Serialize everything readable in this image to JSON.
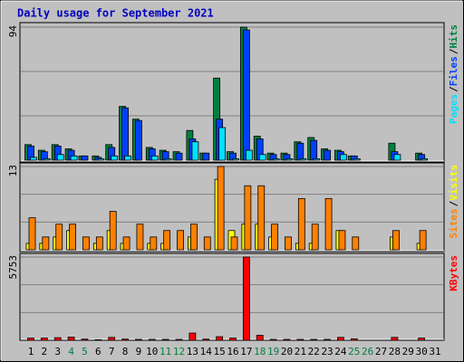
{
  "chart_data": {
    "type": "bar",
    "title": "Daily usage for September 2021",
    "background": "#c0c0c0",
    "legend_separator": "/",
    "categories": [
      "1",
      "2",
      "3",
      "4",
      "5",
      "6",
      "7",
      "8",
      "9",
      "10",
      "11",
      "12",
      "13",
      "14",
      "15",
      "16",
      "17",
      "18",
      "19",
      "20",
      "21",
      "22",
      "23",
      "24",
      "25",
      "26",
      "27",
      "28",
      "29",
      "30",
      "31"
    ],
    "category_colors": [
      "#000000",
      "#000000",
      "#000000",
      "#008040",
      "#008040",
      "#000000",
      "#000000",
      "#000000",
      "#000000",
      "#000000",
      "#008040",
      "#008040",
      "#000000",
      "#000000",
      "#000000",
      "#000000",
      "#000000",
      "#008040",
      "#008040",
      "#000000",
      "#000000",
      "#000000",
      "#000000",
      "#000000",
      "#008040",
      "#008040",
      "#000000",
      "#000000",
      "#000000",
      "#000000",
      "#000000"
    ],
    "panels": [
      {
        "ylim": [
          0,
          94
        ],
        "yticks": [
          94
        ],
        "grid_divisions": 3,
        "series": [
          {
            "name": "Hits",
            "color": "#008040",
            "values": [
              11,
              7,
              11,
              8,
              3,
              3,
              11,
              38,
              29,
              9,
              7,
              6,
              21,
              5,
              58,
              6,
              94,
              17,
              5,
              5,
              13,
              16,
              8,
              7,
              3,
              0,
              0,
              12,
              0,
              5,
              0
            ]
          },
          {
            "name": "Files",
            "color": "#0040ff",
            "values": [
              10,
              6,
              10,
              7,
              3,
              2,
              9,
              37,
              28,
              8,
              6,
              5,
              15,
              5,
              29,
              5,
              92,
              15,
              4,
              4,
              12,
              14,
              7,
              6,
              3,
              0,
              0,
              6,
              0,
              4,
              0
            ]
          },
          {
            "name": "Pages",
            "color": "#00e0ff",
            "values": [
              2,
              1,
              4,
              3,
              0,
              1,
              3,
              3,
              0,
              3,
              1,
              0,
              13,
              0,
              23,
              1,
              7,
              4,
              1,
              1,
              1,
              1,
              0,
              4,
              1,
              0,
              0,
              4,
              0,
              1,
              0
            ]
          }
        ]
      },
      {
        "ylim": [
          0,
          13
        ],
        "yticks": [
          13
        ],
        "grid_divisions": 3,
        "series": [
          {
            "name": "Visits",
            "color": "#ffff00",
            "values": [
              1,
              1,
              2,
              3,
              0,
              1,
              3,
              1,
              0,
              1,
              1,
              0,
              2,
              0,
              11,
              3,
              4,
              4,
              2,
              0,
              1,
              1,
              0,
              3,
              0,
              0,
              0,
              2,
              0,
              1,
              0
            ]
          },
          {
            "name": "Sites",
            "color": "#ff8000",
            "values": [
              5,
              2,
              4,
              4,
              2,
              2,
              6,
              2,
              4,
              2,
              3,
              3,
              4,
              2,
              13,
              2,
              10,
              10,
              4,
              2,
              8,
              4,
              8,
              3,
              2,
              0,
              0,
              3,
              0,
              3,
              0
            ]
          }
        ]
      },
      {
        "ylim": [
          0,
          5753
        ],
        "yticks": [
          5753
        ],
        "grid_divisions": 3,
        "series": [
          {
            "name": "KBytes",
            "color": "#ff0000",
            "values": [
              150,
              150,
              180,
              220,
              80,
              40,
              200,
              80,
              60,
              60,
              60,
              60,
              500,
              80,
              250,
              150,
              5753,
              350,
              60,
              60,
              60,
              60,
              60,
              200,
              100,
              0,
              0,
              200,
              0,
              150,
              0
            ]
          }
        ]
      }
    ]
  }
}
